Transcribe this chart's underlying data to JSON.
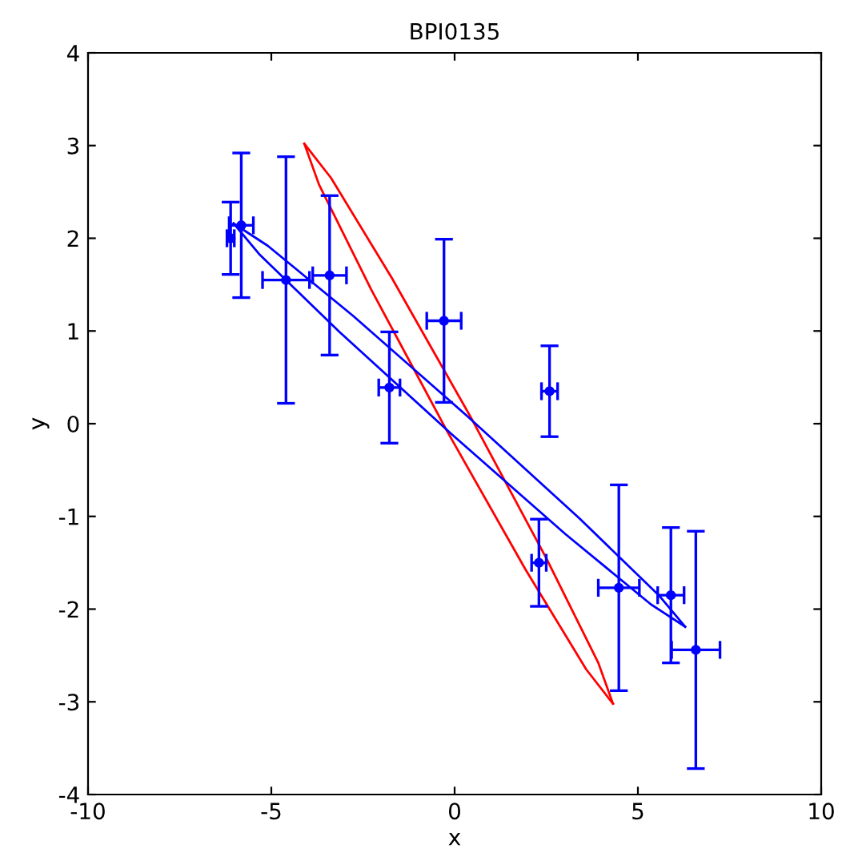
{
  "chart_data": {
    "type": "scatter",
    "title": "BPI0135",
    "xlabel": "x",
    "ylabel": "y",
    "xlim": [
      -10,
      10
    ],
    "ylim": [
      -4,
      4
    ],
    "xticks": [
      -10,
      -5,
      0,
      5,
      10
    ],
    "yticks": [
      -4,
      -3,
      -2,
      -1,
      0,
      1,
      2,
      3,
      4
    ],
    "grid": false,
    "legend": false,
    "marker": "circle",
    "series": [
      {
        "color": "#0000ff",
        "x": [
          -6.11,
          -5.82,
          -4.6,
          -3.41,
          -1.78,
          -0.29,
          2.59,
          2.3,
          4.48,
          5.9,
          6.58
        ],
        "values": [
          2.0,
          2.14,
          1.55,
          1.6,
          0.39,
          1.11,
          0.35,
          -1.5,
          -1.77,
          -1.85,
          -2.44
        ],
        "errors": [
          0.39,
          0.78,
          1.33,
          0.86,
          0.6,
          0.88,
          0.49,
          0.47,
          1.11,
          0.73,
          1.28
        ],
        "xerrors": [
          0.1,
          0.33,
          0.64,
          0.46,
          0.29,
          0.47,
          0.22,
          0.2,
          0.56,
          0.36,
          0.66
        ]
      },
      {
        "type": "line",
        "color": "#ff0000",
        "line_style": "solid",
        "marker": "none",
        "x": [
          -4.1,
          -3.37,
          -1.71,
          0.44,
          2.5,
          3.92,
          4.32
        ],
        "values": [
          3.02,
          2.65,
          1.57,
          0.07,
          -1.45,
          -2.58,
          -3.02
        ]
      },
      {
        "type": "line",
        "color": "#ff0000",
        "line_style": "solid",
        "marker": "none",
        "x": [
          -4.1,
          -3.7,
          -2.28,
          -0.22,
          1.93,
          3.59,
          4.32
        ],
        "values": [
          3.02,
          2.58,
          1.45,
          -0.07,
          -1.57,
          -2.65,
          -3.02
        ]
      },
      {
        "type": "line",
        "color": "#0000ff",
        "line_style": "solid",
        "marker": "none",
        "x": [
          -6.03,
          -5.1,
          -2.76,
          0.35,
          3.4,
          5.57,
          6.29
        ],
        "values": [
          2.16,
          1.92,
          1.16,
          0.08,
          -1.02,
          -1.85,
          -2.19
        ]
      },
      {
        "type": "line",
        "color": "#0000ff",
        "line_style": "solid",
        "marker": "none",
        "x": [
          -6.03,
          -5.31,
          -3.14,
          -0.09,
          3.02,
          5.36,
          6.29
        ],
        "values": [
          2.16,
          1.82,
          0.99,
          -0.11,
          -1.19,
          -1.95,
          -2.19
        ]
      }
    ]
  }
}
